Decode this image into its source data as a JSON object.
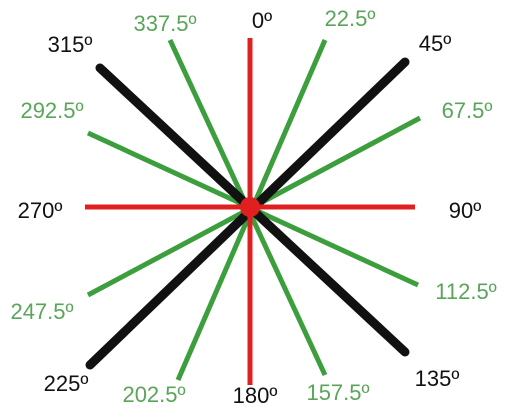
{
  "nodes": [
    {
      "label": "0º"
    },
    {
      "label": "22.5º"
    },
    {
      "label": "45º"
    },
    {
      "label": "67.5º"
    },
    {
      "label": "90º"
    },
    {
      "label": "112.5º"
    },
    {
      "label": "135º"
    },
    {
      "label": "157.5º"
    },
    {
      "label": "180º"
    },
    {
      "label": "202.5º"
    },
    {
      "label": "225º"
    },
    {
      "label": "247.5º"
    },
    {
      "label": "270º"
    },
    {
      "label": "292.5º"
    },
    {
      "label": "315º"
    },
    {
      "label": "337.5º"
    }
  ]
}
